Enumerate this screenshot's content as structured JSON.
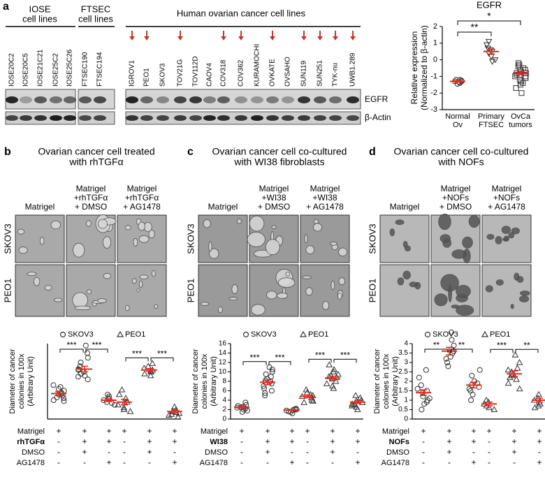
{
  "panel_a": {
    "letter": "a",
    "groups": [
      {
        "title": [
          "IOSE",
          "cell lines"
        ],
        "lanes": [
          {
            "label": "IOSE20C2",
            "color": "#000000",
            "arrow": false
          },
          {
            "label": "IOSE20C5",
            "color": "#000000",
            "arrow": false
          },
          {
            "label": "IOSE21C21",
            "color": "#000000",
            "arrow": false
          },
          {
            "label": "IOSE25C2",
            "color": "#000000",
            "arrow": false
          },
          {
            "label": "IOSE25C26",
            "color": "#000000",
            "arrow": false
          }
        ]
      },
      {
        "title": [
          "FTSEC",
          "cell lines"
        ],
        "lanes": [
          {
            "label": "FTSEC190",
            "color": "#000000",
            "arrow": false
          },
          {
            "label": "FTSEC194",
            "color": "#000000",
            "arrow": false
          }
        ]
      },
      {
        "title": [
          "Human ovarian cancer cell lines"
        ],
        "lanes": [
          {
            "label": "IGROV1",
            "color": "#000000",
            "arrow": true
          },
          {
            "label": "PEO1",
            "color": "#c0392b",
            "arrow": true
          },
          {
            "label": "SKOV3",
            "color": "#000000",
            "arrow": false
          },
          {
            "label": "TOV21G",
            "color": "#000000",
            "arrow": true
          },
          {
            "label": "TOV112D",
            "color": "#000000",
            "arrow": false
          },
          {
            "label": "CAOV4",
            "color": "#c0392b",
            "arrow": false
          },
          {
            "label": "COV318",
            "color": "#c0392b",
            "arrow": true
          },
          {
            "label": "COV362",
            "color": "#c0392b",
            "arrow": true
          },
          {
            "label": "KURAMOCHI",
            "color": "#c0392b",
            "arrow": false
          },
          {
            "label": "OVKATE",
            "color": "#c0392b",
            "arrow": true
          },
          {
            "label": "OVSAHO",
            "color": "#c0392b",
            "arrow": false
          },
          {
            "label": "SUN119",
            "color": "#c0392b",
            "arrow": true
          },
          {
            "label": "SUN251",
            "color": "#000000",
            "arrow": true
          },
          {
            "label": "TYK-nu",
            "color": "#c0392b",
            "arrow": true
          },
          {
            "label": "UWB1.289",
            "color": "#000000",
            "arrow": true
          }
        ]
      }
    ],
    "blot_labels": [
      "EGFR",
      "β-Actin"
    ]
  },
  "panels": [
    {
      "letter": "b",
      "title": [
        "Ovarian cancer cell treated",
        "with rhTGFα"
      ],
      "columns": [
        [
          "Matrigel"
        ],
        [
          "Matrigel",
          "+rhTGFα",
          "+ DMSO"
        ],
        [
          "Matrigel",
          "+rhTGFα",
          "+ AG1478"
        ]
      ],
      "rows": [
        "SKOV3",
        "PEO1"
      ]
    },
    {
      "letter": "c",
      "title": [
        "Ovarian cancer cell co-cultured",
        "with WI38 fibroblasts"
      ],
      "columns": [
        [
          "Matrigel"
        ],
        [
          "Matrigel",
          "+WI38",
          "+ DMSO"
        ],
        [
          "Matrigel",
          "+WI38",
          "+ AG1478"
        ]
      ],
      "rows": [
        "SKOV3",
        "PEO1"
      ]
    },
    {
      "letter": "d",
      "title": [
        "Ovarian cancer cell co-cultured",
        "with NOFs"
      ],
      "columns": [
        [
          "Matrigel"
        ],
        [
          "Matrigel",
          "+NOFs",
          "+ DMSO"
        ],
        [
          "Matrigel",
          "+NOFs",
          "+ AG1478"
        ]
      ],
      "rows": [
        "SKOV3",
        "PEO1"
      ]
    }
  ],
  "chart_data": [
    {
      "type": "strip",
      "title": "EGFR",
      "ylabel": [
        "Relative expression",
        "(Normalized to β-actin)"
      ],
      "ylim": [
        -3,
        2
      ],
      "yticks": [
        -3,
        -2,
        -1,
        0,
        1,
        2
      ],
      "mean_color": "#e8291c",
      "categories": [
        [
          "Normal",
          "Ov"
        ],
        [
          "Primary",
          "FTSEC"
        ],
        [
          "OvCa",
          "tumors"
        ]
      ],
      "groups": [
        {
          "marker": "circle",
          "mean": -1.3,
          "error": 0.05,
          "points": [
            -1.2,
            -1.3,
            -1.4,
            -1.35,
            -1.25,
            -1.3,
            -1.45,
            -1.2
          ]
        },
        {
          "marker": "triangle-down",
          "mean": 0.5,
          "error": 0.15,
          "points": [
            1.1,
            0.9,
            0.6,
            0.4,
            0.2,
            0.0,
            0.5,
            0.7,
            -0.1
          ]
        },
        {
          "marker": "square",
          "mean": -0.8,
          "error": 0.1,
          "points": [
            -0.2,
            -0.4,
            -0.5,
            -0.6,
            -0.7,
            -0.8,
            -0.9,
            -1.0,
            -1.1,
            -1.2,
            -1.3,
            -1.5,
            -1.7,
            -0.3,
            -0.6,
            -0.9,
            -1.0,
            -1.4,
            -2.0,
            -0.8
          ]
        }
      ],
      "significance": [
        "**",
        "*"
      ]
    },
    {
      "type": "dot",
      "ylabel": [
        "Diameter of cancer",
        "colonies in 100x",
        "(Arbitrary Unit)"
      ],
      "ylim": [
        0,
        8
      ],
      "mean_color": "#e8291c",
      "series": [
        {
          "name": "SKOV3",
          "marker": "circle",
          "significance": [
            "***",
            "***"
          ],
          "groups": [
            {
              "mean": 2.7,
              "error": 0.2,
              "points": [
                2.0,
                2.3,
                2.5,
                2.7,
                3.0,
                3.2,
                3.6,
                2.2,
                2.8,
                3.4,
                2.6,
                1.9
              ]
            },
            {
              "mean": 5.3,
              "error": 0.3,
              "points": [
                4.2,
                4.5,
                4.8,
                5.0,
                5.3,
                5.6,
                6.0,
                6.5,
                7.0,
                7.8,
                5.2,
                4.6
              ]
            },
            {
              "mean": 2.0,
              "error": 0.15,
              "points": [
                1.5,
                1.8,
                2.0,
                2.2,
                2.4,
                1.7,
                2.1,
                2.6
              ]
            }
          ]
        },
        {
          "name": "PEO1",
          "marker": "triangle",
          "significance": [
            "***",
            "***"
          ],
          "groups": [
            {
              "mean": 1.8,
              "error": 0.3,
              "points": [
                0.8,
                1.2,
                1.5,
                1.8,
                2.2,
                2.6,
                3.1,
                1.0,
                1.7
              ]
            },
            {
              "mean": 5.2,
              "error": 0.15,
              "points": [
                4.6,
                4.8,
                5.0,
                5.2,
                5.4,
                5.6,
                5.9,
                5.1
              ]
            },
            {
              "mean": 0.8,
              "error": 0.15,
              "points": [
                0.2,
                0.4,
                0.6,
                0.8,
                1.0,
                1.3,
                0.7,
                0.5
              ]
            }
          ]
        }
      ],
      "treatments": [
        {
          "label": "Matrigel",
          "bold": false,
          "signs": [
            "+",
            "+",
            "+",
            "+",
            "+",
            "+"
          ]
        },
        {
          "label": "rhTGFα",
          "bold": true,
          "signs": [
            "-",
            "+",
            "+",
            "-",
            "+",
            "+"
          ]
        },
        {
          "label": "DMSO",
          "bold": false,
          "signs": [
            "-",
            "+",
            "-",
            "-",
            "+",
            "-"
          ]
        },
        {
          "label": "AG1478",
          "bold": false,
          "signs": [
            "-",
            "-",
            "+",
            "-",
            "-",
            "+"
          ]
        }
      ]
    },
    {
      "type": "dot",
      "ylabel": [
        "Diameter of cancer",
        "colonies in 100x",
        "(Arbitrary Unit)"
      ],
      "ylim": [
        0,
        16
      ],
      "yticks": [
        0,
        2,
        4,
        6,
        8,
        10,
        12,
        14,
        16
      ],
      "mean_color": "#e8291c",
      "series": [
        {
          "name": "SKOV3",
          "marker": "circle",
          "significance": [
            "***",
            "***"
          ],
          "groups": [
            {
              "mean": 2.5,
              "error": 0.2,
              "points": [
                1.5,
                2.0,
                2.2,
                2.5,
                2.8,
                3.0,
                3.5,
                2.4,
                1.8,
                2.6
              ]
            },
            {
              "mean": 7.8,
              "error": 0.5,
              "points": [
                5.0,
                5.5,
                6.0,
                6.5,
                7.0,
                7.5,
                8.0,
                8.5,
                9.0,
                9.5,
                10.0,
                10.5,
                11.0,
                7.8,
                8.2
              ]
            },
            {
              "mean": 1.9,
              "error": 0.1,
              "points": [
                1.2,
                1.5,
                1.8,
                2.0,
                2.2,
                1.6,
                1.9,
                2.1
              ]
            }
          ]
        },
        {
          "name": "PEO1",
          "marker": "triangle",
          "significance": [
            "***",
            "***"
          ],
          "groups": [
            {
              "mean": 4.8,
              "error": 0.3,
              "points": [
                3.5,
                4.0,
                4.5,
                4.8,
                5.2,
                5.6,
                6.2,
                3.8,
                5.0
              ]
            },
            {
              "mean": 8.7,
              "error": 0.4,
              "points": [
                6.5,
                7.0,
                7.5,
                8.0,
                8.5,
                9.0,
                9.5,
                10.0,
                10.5,
                11.5,
                8.8,
                9.2
              ]
            },
            {
              "mean": 3.6,
              "error": 0.3,
              "points": [
                2.0,
                2.5,
                3.0,
                3.5,
                4.0,
                4.5,
                5.0,
                3.2,
                3.8,
                2.8
              ]
            }
          ]
        }
      ],
      "treatments": [
        {
          "label": "Matrigel",
          "bold": false,
          "signs": [
            "+",
            "+",
            "+",
            "+",
            "+",
            "+"
          ]
        },
        {
          "label": "WI38",
          "bold": true,
          "signs": [
            "-",
            "+",
            "+",
            "-",
            "+",
            "+"
          ]
        },
        {
          "label": "DMSO",
          "bold": false,
          "signs": [
            "-",
            "+",
            "-",
            "-",
            "+",
            "-"
          ]
        },
        {
          "label": "AG1478",
          "bold": false,
          "signs": [
            "-",
            "-",
            "+",
            "-",
            "-",
            "+"
          ]
        }
      ]
    },
    {
      "type": "dot",
      "ylabel": [
        "Diameter of cancer",
        "colonies in 100x",
        "(Arbitrary Unit)"
      ],
      "ylim": [
        0,
        4
      ],
      "yticks": [
        0,
        0.5,
        1,
        1.5,
        2,
        2.5,
        3,
        3.5,
        4
      ],
      "mean_color": "#e8291c",
      "series": [
        {
          "name": "SKOV3",
          "marker": "circle",
          "significance": [
            "**",
            "**"
          ],
          "groups": [
            {
              "mean": 1.4,
              "error": 0.15,
              "points": [
                0.5,
                0.8,
                1.0,
                1.2,
                1.4,
                1.6,
                1.8,
                2.2,
                2.6,
                1.1,
                0.9,
                1.5
              ]
            },
            {
              "mean": 3.6,
              "error": 0.2,
              "points": [
                2.8,
                3.0,
                3.3,
                3.5,
                3.7,
                3.9,
                4.2,
                4.6,
                3.6,
                3.2
              ]
            },
            {
              "mean": 1.8,
              "error": 0.15,
              "points": [
                1.0,
                1.3,
                1.6,
                1.8,
                2.0,
                2.3,
                2.6,
                1.5,
                1.9,
                1.7
              ]
            }
          ]
        },
        {
          "name": "PEO1",
          "marker": "triangle",
          "significance": [
            "***",
            "**"
          ],
          "groups": [
            {
              "mean": 0.8,
              "error": 0.1,
              "points": [
                0.5,
                0.7,
                0.8,
                0.9,
                1.0,
                0.6
              ]
            },
            {
              "mean": 2.4,
              "error": 0.15,
              "points": [
                1.6,
                1.9,
                2.1,
                2.3,
                2.5,
                2.7,
                3.0,
                3.4,
                2.2,
                2.4,
                2.6
              ]
            },
            {
              "mean": 1.0,
              "error": 0.1,
              "points": [
                0.7,
                0.8,
                0.9,
                1.0,
                1.1,
                1.3,
                0.6
              ]
            }
          ]
        }
      ],
      "treatments": [
        {
          "label": "Matrigel",
          "bold": false,
          "signs": [
            "+",
            "+",
            "+",
            "+",
            "+",
            "+"
          ]
        },
        {
          "label": "NOFs",
          "bold": true,
          "signs": [
            "-",
            "+",
            "+",
            "-",
            "+",
            "+"
          ]
        },
        {
          "label": "DMSO",
          "bold": false,
          "signs": [
            "-",
            "+",
            "-",
            "-",
            "+",
            "-"
          ]
        },
        {
          "label": "AG1478",
          "bold": false,
          "signs": [
            "-",
            "-",
            "+",
            "-",
            "-",
            "+"
          ]
        }
      ]
    }
  ]
}
